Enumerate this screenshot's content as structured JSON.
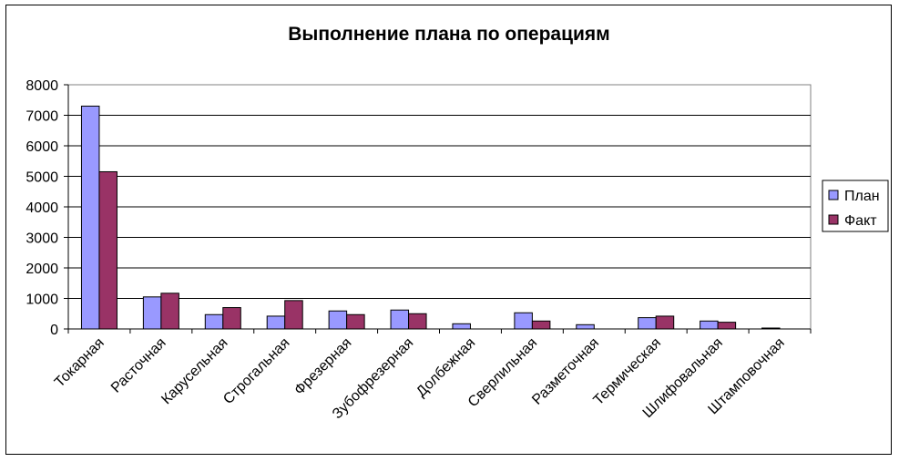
{
  "chart_data": {
    "type": "bar",
    "title": "Выполнение плана по операциям",
    "xlabel": "",
    "ylabel": "",
    "ylim": [
      0,
      8000
    ],
    "yticks": [
      0,
      1000,
      2000,
      3000,
      4000,
      5000,
      6000,
      7000,
      8000
    ],
    "grid": true,
    "legend_position": "right",
    "categories": [
      "Токарная",
      "Расточная",
      "Карусельная",
      "Строгальная",
      "Фрезерная",
      "Зубофрезерная",
      "Долбежная",
      "Сверлильная",
      "Разметочная",
      "Термическая",
      "Шлифовальная",
      "Штамповочная"
    ],
    "series": [
      {
        "name": "План",
        "color": "#9999ff",
        "values": [
          7300,
          1050,
          470,
          420,
          590,
          620,
          170,
          530,
          140,
          370,
          260,
          30
        ]
      },
      {
        "name": "Факт",
        "color": "#993366",
        "values": [
          5150,
          1170,
          700,
          930,
          470,
          500,
          0,
          260,
          0,
          420,
          220,
          0
        ]
      }
    ]
  }
}
